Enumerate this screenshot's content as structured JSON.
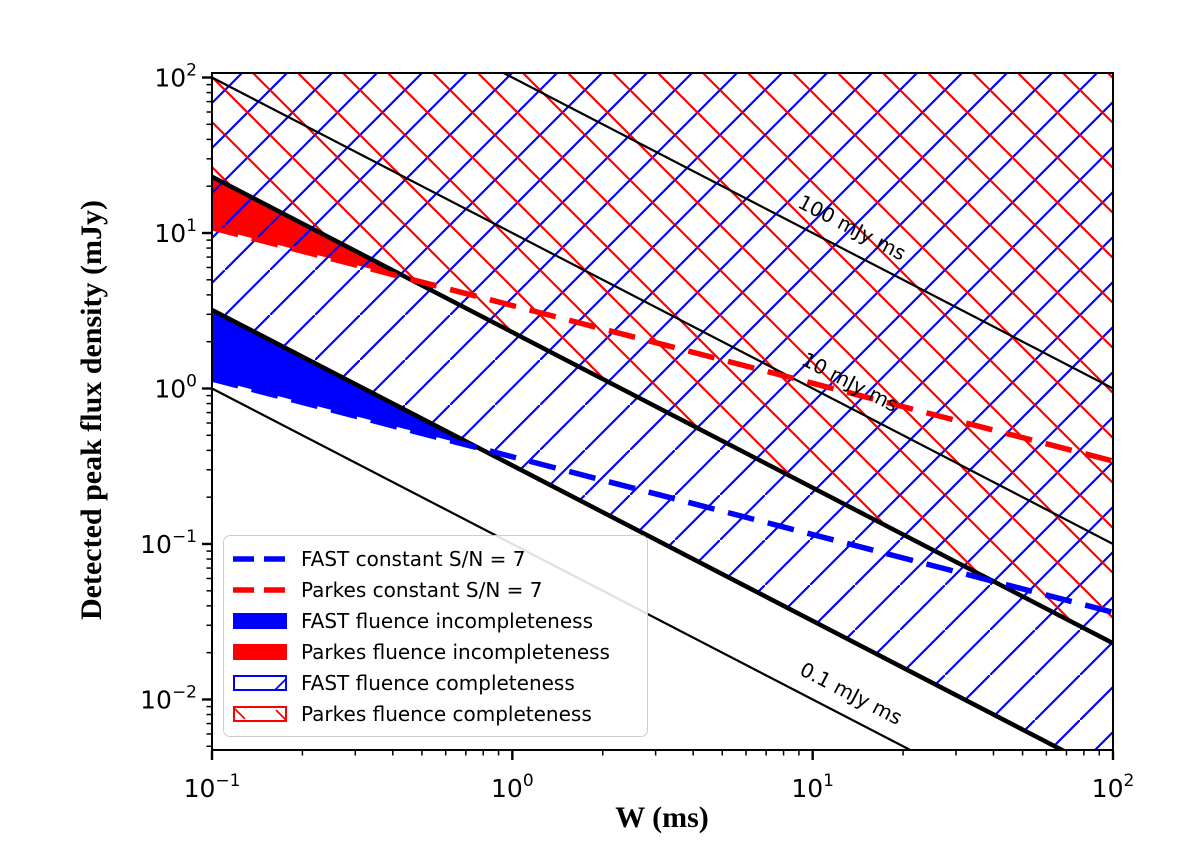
{
  "colors": {
    "fast": "#0000FF",
    "parkes": "#FF0000",
    "line_black": "#000000",
    "legend_border": "#CCCCCC",
    "background": "#FFFFFF"
  },
  "chart_data": {
    "type": "line",
    "title": "",
    "xlabel": "W (ms)",
    "ylabel": "Detected peak flux density (mJy)",
    "xscale": "log",
    "yscale": "log",
    "xlim": [
      0.1,
      100
    ],
    "ylim": [
      0.0047,
      107
    ],
    "xlog_range": [
      -1,
      2
    ],
    "ylog_range": [
      -2.325,
      2.029
    ],
    "grid": false,
    "x_ticks": [
      {
        "log": -1,
        "base": "10",
        "exp": "−1"
      },
      {
        "log": 0,
        "base": "10",
        "exp": "0"
      },
      {
        "log": 1,
        "base": "10",
        "exp": "1"
      },
      {
        "log": 2,
        "base": "10",
        "exp": "2"
      }
    ],
    "y_ticks": [
      {
        "log": 2,
        "base": "10",
        "exp": "2"
      },
      {
        "log": 1,
        "base": "10",
        "exp": "1"
      },
      {
        "log": 0,
        "base": "10",
        "exp": "0"
      },
      {
        "log": -1,
        "base": "10",
        "exp": "−1"
      },
      {
        "log": -2,
        "base": "10",
        "exp": "−2"
      }
    ],
    "fluence_lines": [
      {
        "fluence_mJy_ms": 100,
        "label": "100 mJy ms",
        "label_at_W_ms": 13.2
      },
      {
        "fluence_mJy_ms": 10,
        "label": "10 mJy ms",
        "label_at_W_ms": 13.0
      },
      {
        "fluence_mJy_ms": 0.1,
        "label": "0.1 mJy ms",
        "label_at_W_ms": 13.1
      }
    ],
    "completeness_regions": [
      {
        "name": "FAST fluence completeness",
        "telescope": "FAST",
        "fluence_threshold_mJy_ms": 0.32,
        "hatch": "/",
        "color_key": "fast"
      },
      {
        "name": "Parkes fluence completeness",
        "telescope": "Parkes",
        "fluence_threshold_mJy_ms": 2.3,
        "hatch": "\\",
        "color_key": "parkes"
      }
    ],
    "sn7_lines": [
      {
        "name": "FAST constant S/N = 7",
        "telescope": "FAST",
        "flux_at_0p1ms_mJy": 1.15,
        "loglog_slope": -0.5,
        "color_key": "fast"
      },
      {
        "name": "Parkes constant S/N = 7",
        "telescope": "Parkes",
        "flux_at_0p1ms_mJy": 10.8,
        "loglog_slope": -0.5,
        "color_key": "parkes"
      }
    ],
    "incompleteness_regions": [
      {
        "name": "FAST fluence incompleteness",
        "telescope": "FAST",
        "color_key": "fast"
      },
      {
        "name": "Parkes fluence incompleteness",
        "telescope": "Parkes",
        "color_key": "parkes"
      }
    ]
  },
  "legend": {
    "items": [
      {
        "label": "FAST constant S/N = 7",
        "swatch": "dashed",
        "color_key": "fast"
      },
      {
        "label": "Parkes constant S/N = 7",
        "swatch": "dashed",
        "color_key": "parkes"
      },
      {
        "label": "FAST fluence incompleteness",
        "swatch": "filled",
        "color_key": "fast"
      },
      {
        "label": "Parkes fluence incompleteness",
        "swatch": "filled",
        "color_key": "parkes"
      },
      {
        "label": "FAST fluence completeness",
        "swatch": "hatched-forward",
        "color_key": "fast"
      },
      {
        "label": "Parkes fluence completeness",
        "swatch": "hatched-back",
        "color_key": "parkes"
      }
    ]
  }
}
